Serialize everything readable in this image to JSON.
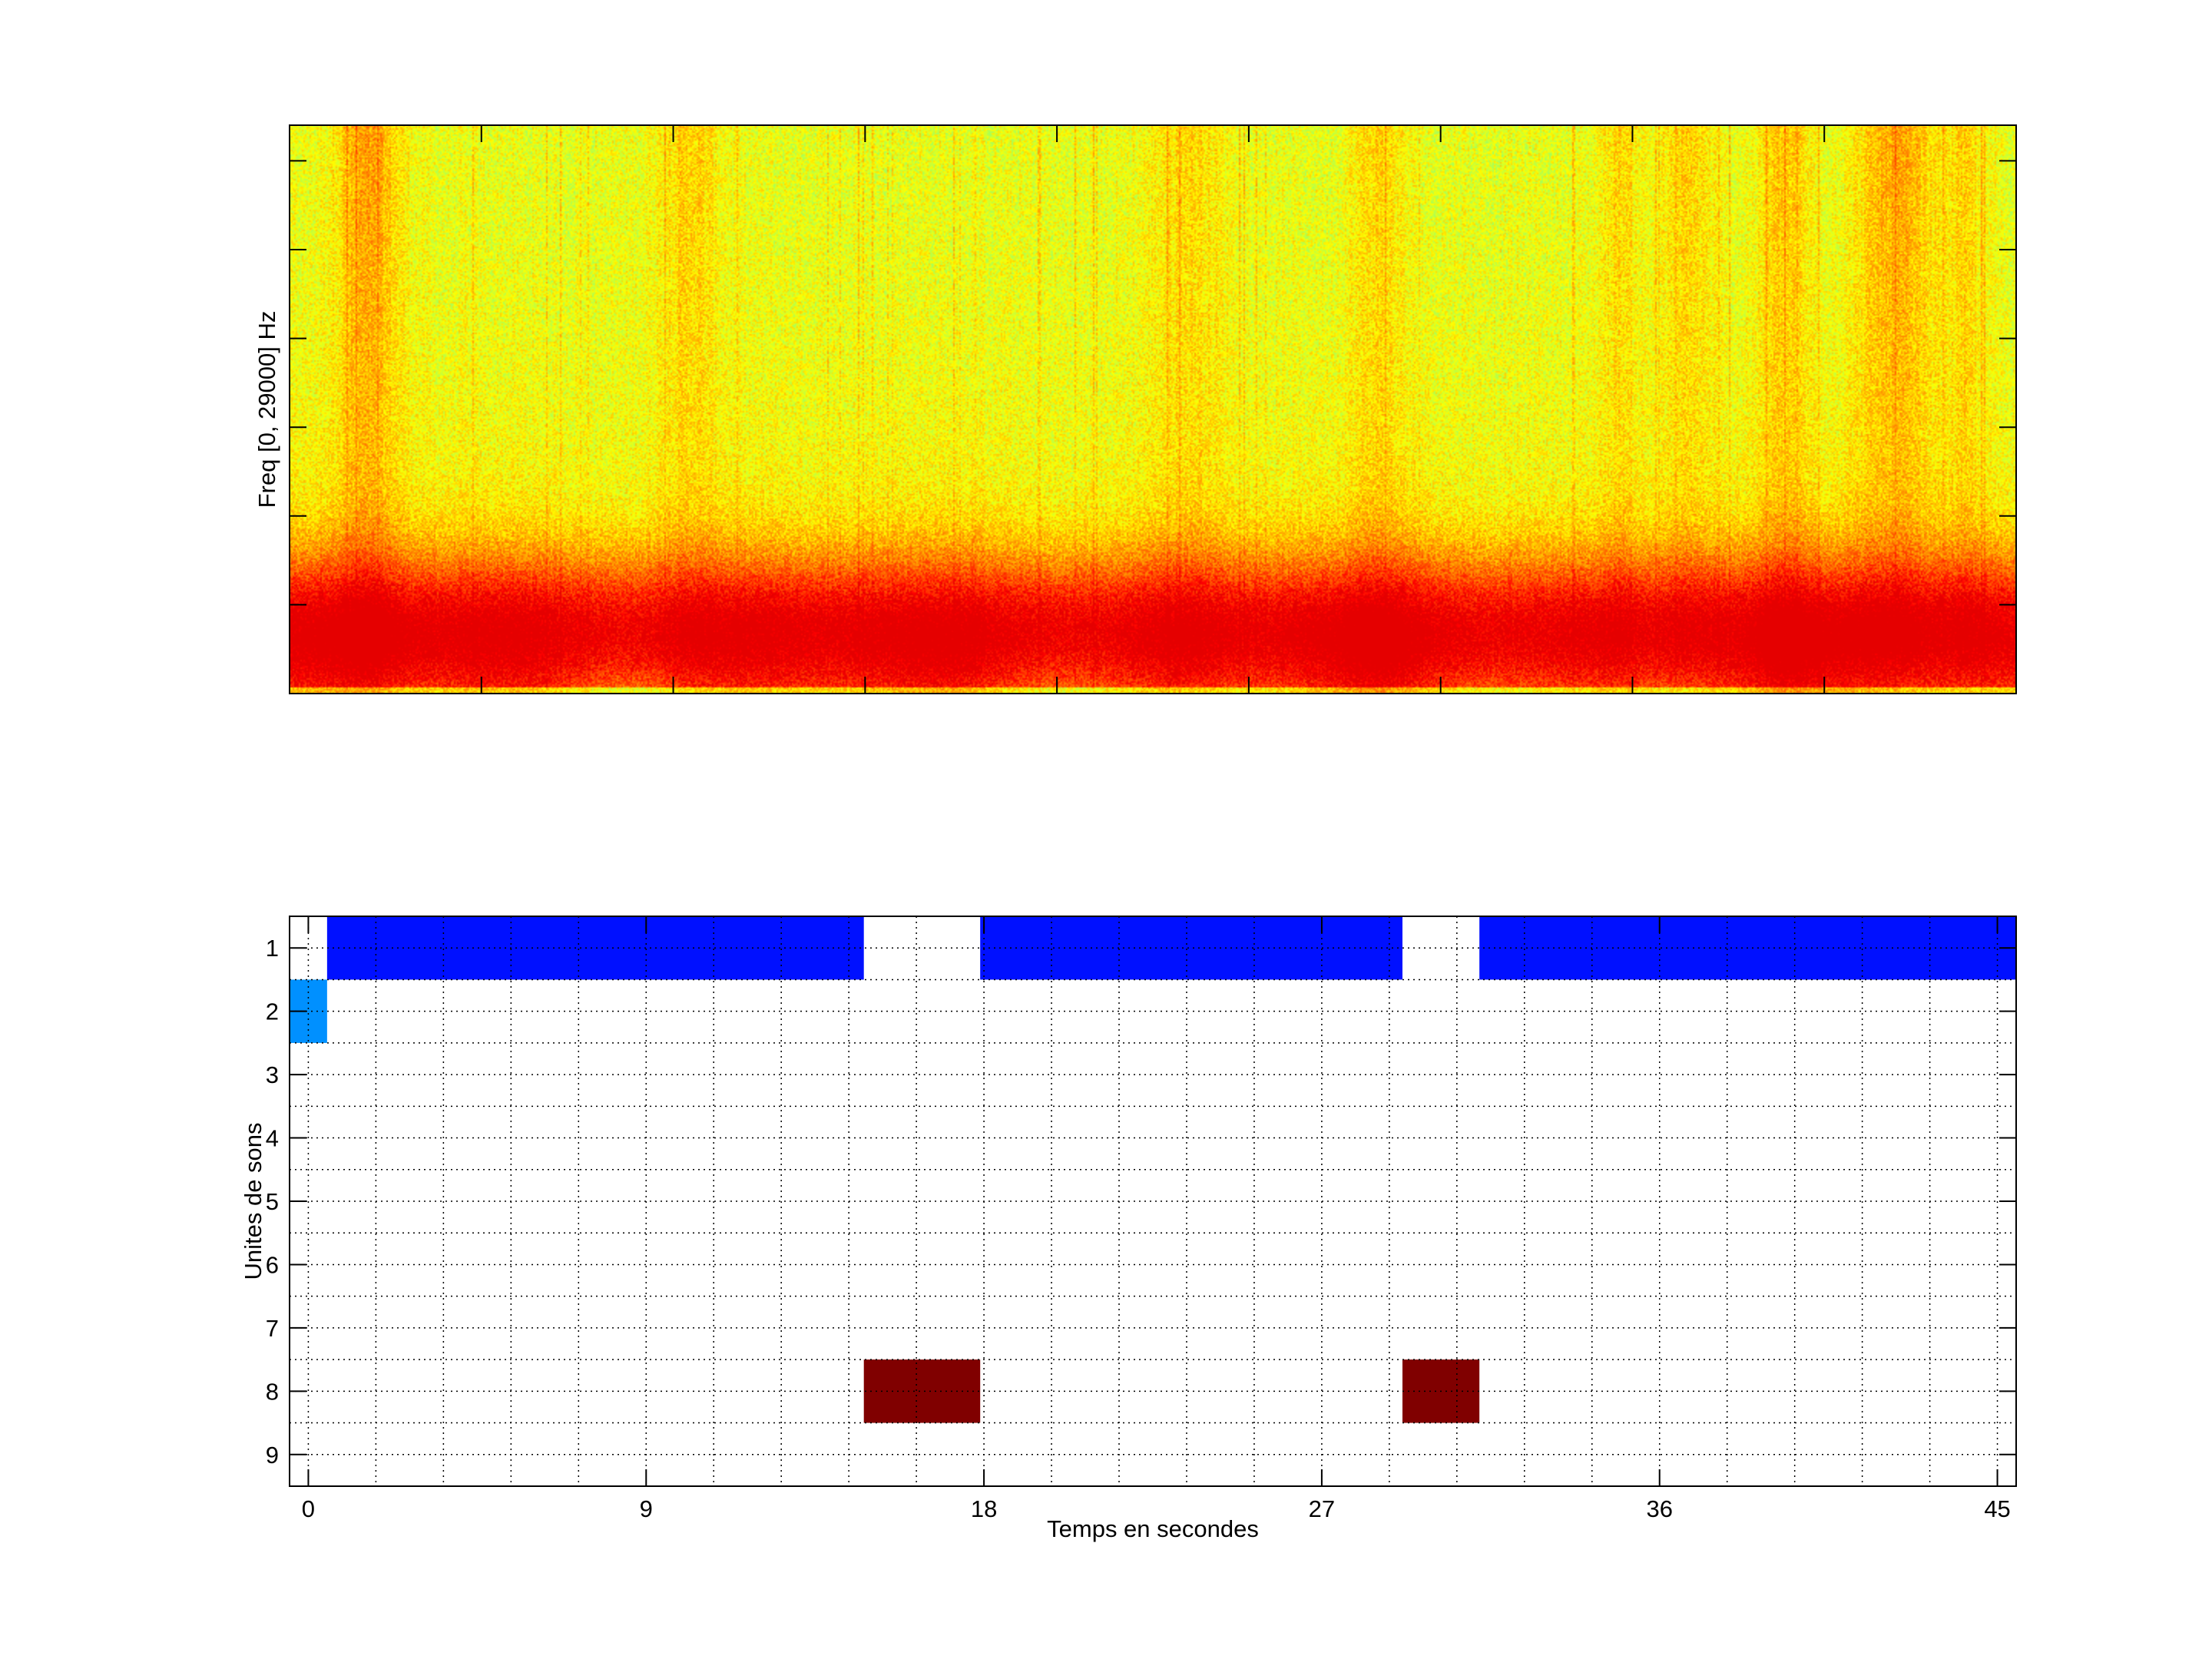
{
  "chart_data": [
    {
      "type": "heatmap",
      "subtype": "spectrogram",
      "ylabel": "Freq [0, 29000] Hz",
      "yrange_hz": [
        0,
        29000
      ],
      "xlim": [
        0,
        45
      ],
      "x_major_ticks": [
        0,
        5,
        10,
        15,
        20,
        25,
        30,
        35,
        40,
        45
      ],
      "y_tick_count": 7,
      "colormap": "jet",
      "tick_labels_shown": false
    },
    {
      "type": "heatmap",
      "subtype": "segment-labels",
      "xlabel": "Temps en secondes",
      "ylabel": "Unites de sons",
      "xlim": [
        -0.5,
        45.5
      ],
      "ylim": [
        0.5,
        9.5
      ],
      "xticks": [
        0,
        9,
        18,
        27,
        36,
        45
      ],
      "xtick_labels": [
        "0",
        "9",
        "18",
        "27",
        "36",
        "45"
      ],
      "yticks": [
        1,
        2,
        3,
        4,
        5,
        6,
        7,
        8,
        9
      ],
      "ytick_labels": [
        "1",
        "2",
        "3",
        "4",
        "5",
        "6",
        "7",
        "8",
        "9"
      ],
      "grid": true,
      "grid_x_step": 1.8,
      "grid_y_step": 0.5,
      "segments": [
        {
          "unit": 2,
          "start": -0.5,
          "end": 0.5,
          "color": "#0090ff"
        },
        {
          "unit": 1,
          "start": 0.5,
          "end": 14.8,
          "color": "#0010ff"
        },
        {
          "unit": 8,
          "start": 14.8,
          "end": 17.9,
          "color": "#800000"
        },
        {
          "unit": 1,
          "start": 17.9,
          "end": 29.15,
          "color": "#0010ff"
        },
        {
          "unit": 8,
          "start": 29.15,
          "end": 31.2,
          "color": "#800000"
        },
        {
          "unit": 1,
          "start": 31.2,
          "end": 45.5,
          "color": "#0010ff"
        }
      ]
    }
  ]
}
